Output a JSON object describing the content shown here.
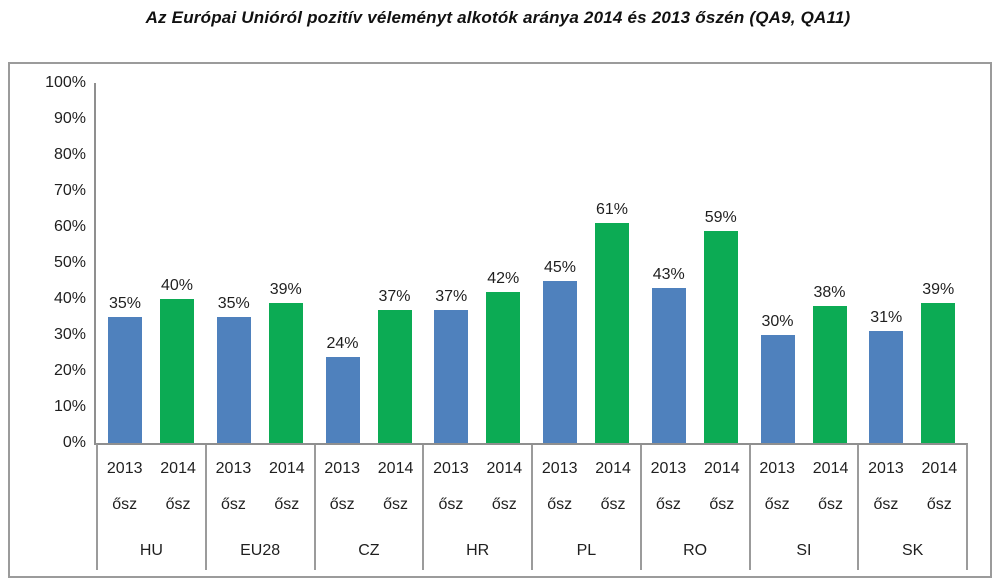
{
  "title": "Az Európai Unióról pozitív véleményt alkotók aránya 2014 és 2013 őszén (QA9, QA11)",
  "chart": {
    "background": "#FFFFFF",
    "outer_border_color": "#9B9B9B",
    "axis_color": "#8F8F8F",
    "text_color": "#1F1F1F",
    "value_suffix": "%"
  },
  "y_axis": {
    "tick_labels": [
      "100%",
      "90%",
      "80%",
      "70%",
      "60%",
      "50%",
      "40%",
      "30%",
      "20%",
      "10%",
      "0%"
    ]
  },
  "chart_data": {
    "type": "bar",
    "title": "Az Európai Unióról pozitív véleményt alkotók aránya 2014 és 2013 őszén (QA9, QA11)",
    "categories": [
      "HU",
      "EU28",
      "CZ",
      "HR",
      "PL",
      "RO",
      "SI",
      "SK"
    ],
    "series": [
      {
        "name": "2013 ősz",
        "label_lines": [
          "2013",
          "ősz"
        ],
        "color": "#4F81BD",
        "values": [
          35,
          35,
          24,
          37,
          45,
          43,
          30,
          31
        ]
      },
      {
        "name": "2014 ősz",
        "label_lines": [
          "2014",
          "ősz"
        ],
        "color": "#0CAB54",
        "values": [
          40,
          39,
          37,
          42,
          61,
          59,
          38,
          39
        ]
      }
    ],
    "xlabel": "",
    "ylabel": "",
    "ylim": [
      0,
      100
    ],
    "y_step": 10,
    "grid": false,
    "legend": "none",
    "value_labels_shown": true
  }
}
